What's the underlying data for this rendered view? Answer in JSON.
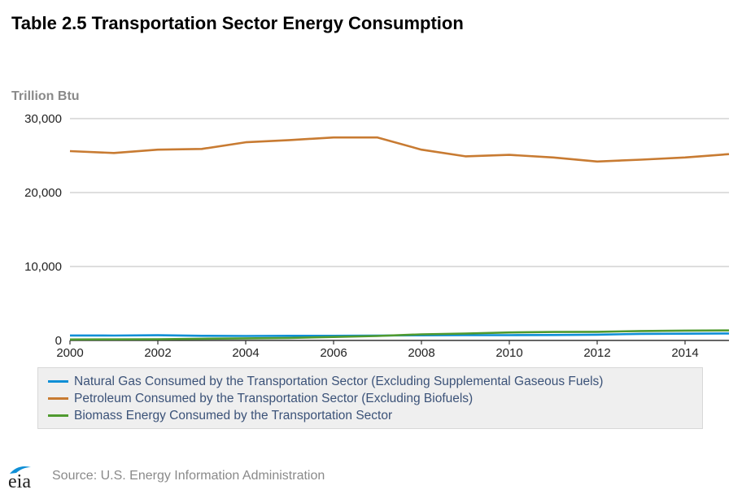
{
  "title": "Table 2.5 Transportation Sector Energy Consumption",
  "source": "Source: U.S. Energy Information Administration",
  "logo_text": "eia",
  "chart_data": {
    "type": "line",
    "title": "Table 2.5 Transportation Sector Energy Consumption",
    "ylabel": "Trillion Btu",
    "xlabel": "",
    "xlim": [
      2000,
      2015
    ],
    "ylim": [
      0,
      30000
    ],
    "y_ticks": [
      0,
      10000,
      20000,
      30000
    ],
    "y_tick_labels": [
      "0",
      "10,000",
      "20,000",
      "30,000"
    ],
    "x_ticks": [
      2000,
      2002,
      2004,
      2006,
      2008,
      2010,
      2012,
      2014
    ],
    "x_tick_labels": [
      "2000",
      "2002",
      "2004",
      "2006",
      "2008",
      "2010",
      "2012",
      "2014"
    ],
    "grid": true,
    "legend_position": "bottom",
    "x": [
      2000,
      2001,
      2002,
      2003,
      2004,
      2005,
      2006,
      2007,
      2008,
      2009,
      2010,
      2011,
      2012,
      2013,
      2014,
      2015
    ],
    "series": [
      {
        "name": "Natural Gas Consumed by the Transportation Sector (Excluding Supplemental Gaseous Fuels)",
        "color": "#0f8fd6",
        "values": [
          672,
          658,
          699,
          627,
          602,
          624,
          625,
          663,
          692,
          715,
          719,
          734,
          780,
          887,
          913,
          942
        ]
      },
      {
        "name": "Petroleum Consumed by the Transportation Sector (Excluding Biofuels)",
        "color": "#c87b32",
        "values": [
          25600,
          25350,
          25800,
          25900,
          26800,
          27100,
          27450,
          27450,
          25800,
          24900,
          25100,
          24750,
          24200,
          24450,
          24750,
          25200
        ]
      },
      {
        "name": "Biomass Energy Consumed by the Transportation Sector",
        "color": "#4f9a2f",
        "values": [
          135,
          142,
          170,
          230,
          286,
          339,
          471,
          599,
          820,
          930,
          1075,
          1140,
          1160,
          1270,
          1330,
          1350
        ]
      }
    ]
  }
}
